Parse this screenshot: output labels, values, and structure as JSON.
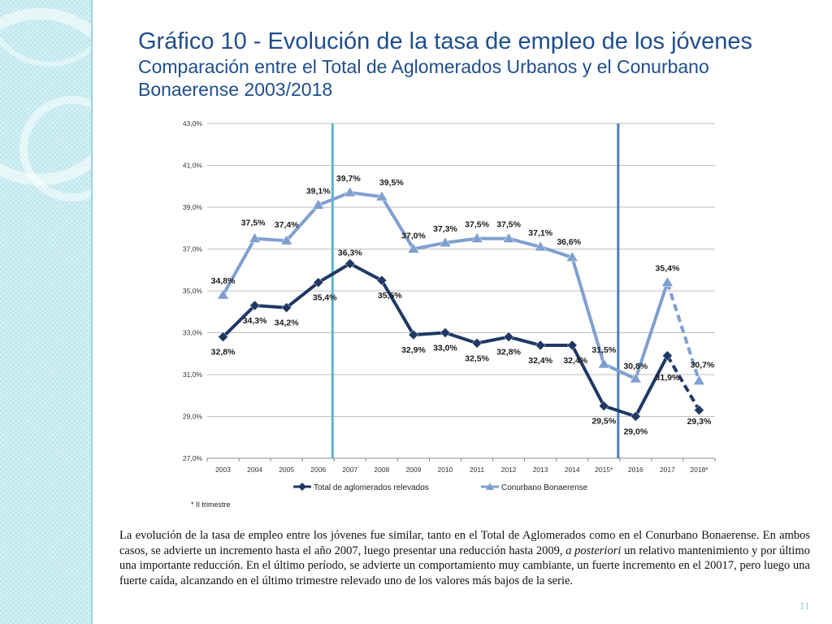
{
  "slide": {
    "title": "Gráfico 10 - Evolución de la tasa de empleo de los jóvenes",
    "subtitle": "Comparación entre el Total de Aglomerados Urbanos y el Conurbano Bonaerense 2003/2018",
    "footnote": "* II trimestre",
    "body_parts": [
      "La evolución de la tasa de empleo entre los jóvenes fue similar, tanto en el Total de Aglomerados como en el Conurbano Bonaerense.  En ambos casos, se advierte un incremento hasta el año 2007, luego presentar una reducción hasta 2009, ",
      "a posteriori",
      " un relativo mantenimiento y por último una importante reducción.  En el último período, se advierte un comportamiento muy cambiante, un fuerte incremento en el 20017, pero luego una fuerte caída, alcanzando en el último trimestre relevado uno de los valores más bajos de la serie."
    ],
    "page_number": "11"
  },
  "colors": {
    "title": "#1f4e8c",
    "total_series": "#1f3864",
    "conurbano_series": "#7f9fcf",
    "marker_line_2007": "#5bb5c9",
    "marker_line_2016": "#4f7fb4",
    "sidebar": "#bfe8ee"
  },
  "chart_data": {
    "type": "line",
    "categories": [
      "2003",
      "2004",
      "2005",
      "2006",
      "2007",
      "2008",
      "2009",
      "2010",
      "2011",
      "2012",
      "2013",
      "2014",
      "2015*",
      "2016",
      "2017",
      "2018*"
    ],
    "ylim": [
      27.0,
      43.0
    ],
    "yticks": [
      "27,0%",
      "29,0%",
      "31,0%",
      "33,0%",
      "35,0%",
      "37,0%",
      "39,0%",
      "41,0%",
      "43,0%"
    ],
    "yticks_values": [
      27,
      29,
      31,
      33,
      35,
      37,
      39,
      41,
      43
    ],
    "grid": true,
    "legend_position": "bottom",
    "reference_lines": [
      "2006-2007",
      "2015*-2016"
    ],
    "series": [
      {
        "name": "Total de aglomerados relevados",
        "values": [
          32.8,
          34.3,
          34.2,
          35.4,
          36.3,
          35.5,
          32.9,
          33.0,
          32.5,
          32.8,
          32.4,
          32.4,
          29.5,
          29.0,
          31.9,
          29.3
        ],
        "labels": [
          "32,8%",
          "34,3%",
          "34,2%",
          "35,4%",
          "36,3%",
          "35,5%",
          "32,9%",
          "33,0%",
          "32,5%",
          "32,8%",
          "32,4%",
          "32,4%",
          "29,5%",
          "29,0%",
          "31,9%",
          "29,3%"
        ],
        "marker": "diamond",
        "dashed_last_segment": true
      },
      {
        "name": "Conurbano Bonaerense",
        "values": [
          34.8,
          37.5,
          37.4,
          39.1,
          39.7,
          39.5,
          37.0,
          37.3,
          37.5,
          37.5,
          37.1,
          36.6,
          31.5,
          30.8,
          35.4,
          30.7
        ],
        "labels": [
          "34,8%",
          "37,5%",
          "37,4%",
          "39,1%",
          "39,7%",
          "39,5%",
          "37,0%",
          "37,3%",
          "37,5%",
          "37,5%",
          "37,1%",
          "36,6%",
          "31,5%",
          "30,8%",
          "35,4%",
          "30,7%"
        ],
        "marker": "triangle",
        "dashed_last_segment": true
      }
    ]
  }
}
